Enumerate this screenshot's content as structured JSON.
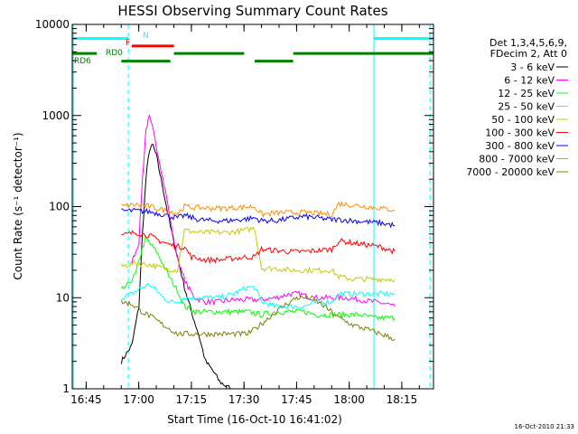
{
  "chart_data": {
    "type": "line",
    "title": "HESSI Observing Summary Count Rates",
    "xlabel": "Start Time (16-Oct-10 16:41:02)",
    "ylabel": "Count Rate (s⁻¹ detector⁻¹)",
    "xaxis_unit": "minutes after 16:41:02",
    "xlim": [
      0,
      103
    ],
    "ylim": [
      1,
      10000
    ],
    "yscale": "log",
    "grid": false,
    "legend_position": "right",
    "x_tick_labels": [
      "16:45",
      "17:00",
      "17:15",
      "17:30",
      "17:45",
      "18:00",
      "18:15"
    ],
    "y_tick_labels": [
      "1",
      "10",
      "100",
      "1000",
      "10000"
    ],
    "legend_header": [
      "Det 1,3,4,5,6,9,",
      "FDecim 2, Att 0"
    ],
    "timestamp": "16-Oct-2010 21:33",
    "series": [
      {
        "name": "3 - 6 keV",
        "color": "#000000",
        "points": [
          [
            14,
            2
          ],
          [
            17,
            3
          ],
          [
            19,
            8
          ],
          [
            20,
            50
          ],
          [
            21,
            200
          ],
          [
            22,
            420
          ],
          [
            23,
            470
          ],
          [
            24,
            360
          ],
          [
            25,
            230
          ],
          [
            26,
            150
          ],
          [
            28,
            60
          ],
          [
            30,
            28
          ],
          [
            32,
            13
          ],
          [
            34,
            7
          ],
          [
            36,
            4
          ],
          [
            38,
            2
          ],
          [
            40,
            1.6
          ],
          [
            42,
            1.2
          ],
          [
            45,
            1.0
          ]
        ]
      },
      {
        "name": "6 - 12 keV",
        "color": "#ff00ff",
        "points": [
          [
            17,
            25
          ],
          [
            19,
            40
          ],
          [
            20,
            200
          ],
          [
            21,
            700
          ],
          [
            22,
            950
          ],
          [
            23,
            700
          ],
          [
            25,
            300
          ],
          [
            27,
            120
          ],
          [
            29,
            40
          ],
          [
            31,
            20
          ],
          [
            33,
            13
          ],
          [
            35,
            10
          ],
          [
            38,
            9
          ],
          [
            42,
            9
          ],
          [
            46,
            9.5
          ],
          [
            50,
            9.5
          ],
          [
            54,
            9.5
          ],
          [
            58,
            10
          ],
          [
            62,
            11
          ],
          [
            65,
            11
          ],
          [
            68,
            10
          ],
          [
            72,
            10
          ],
          [
            75,
            10
          ],
          [
            78,
            10
          ],
          [
            82,
            9.5
          ],
          [
            86,
            9
          ],
          [
            90,
            8.5
          ],
          [
            92,
            8
          ]
        ]
      },
      {
        "name": "12 - 25 keV",
        "color": "#00ff00",
        "points": [
          [
            14,
            12
          ],
          [
            16,
            14
          ],
          [
            18,
            18
          ],
          [
            19,
            25
          ],
          [
            20,
            35
          ],
          [
            21,
            45
          ],
          [
            22,
            40
          ],
          [
            24,
            32
          ],
          [
            26,
            23
          ],
          [
            28,
            16
          ],
          [
            30,
            12
          ],
          [
            32,
            8
          ],
          [
            35,
            7
          ],
          [
            40,
            7
          ],
          [
            45,
            7
          ],
          [
            50,
            7
          ],
          [
            54,
            6.5
          ],
          [
            58,
            7
          ],
          [
            62,
            7
          ],
          [
            66,
            7
          ],
          [
            70,
            6.5
          ],
          [
            74,
            6.5
          ],
          [
            78,
            6.5
          ],
          [
            82,
            6.5
          ],
          [
            86,
            6
          ],
          [
            90,
            6
          ],
          [
            92,
            6
          ]
        ]
      },
      {
        "name": "25 - 50 keV",
        "color": "#00ffff",
        "points": [
          [
            14,
            10
          ],
          [
            17,
            11
          ],
          [
            20,
            13
          ],
          [
            22,
            14
          ],
          [
            24,
            12
          ],
          [
            26,
            10
          ],
          [
            28,
            9
          ],
          [
            30,
            9
          ],
          [
            32,
            10
          ],
          [
            34,
            10
          ],
          [
            38,
            10
          ],
          [
            42,
            10
          ],
          [
            46,
            11
          ],
          [
            50,
            13
          ],
          [
            52,
            13
          ],
          [
            54,
            9
          ],
          [
            58,
            8
          ],
          [
            62,
            8
          ],
          [
            66,
            8
          ],
          [
            70,
            9
          ],
          [
            74,
            9
          ],
          [
            76,
            11
          ],
          [
            80,
            11
          ],
          [
            84,
            11
          ],
          [
            88,
            11
          ],
          [
            92,
            11
          ]
        ]
      },
      {
        "name": "50 - 100 keV",
        "color": "#c8c800",
        "points": [
          [
            14,
            22
          ],
          [
            18,
            24
          ],
          [
            22,
            23
          ],
          [
            26,
            21
          ],
          [
            30,
            20
          ],
          [
            32,
            55
          ],
          [
            36,
            52
          ],
          [
            40,
            52
          ],
          [
            44,
            52
          ],
          [
            48,
            54
          ],
          [
            52,
            58
          ],
          [
            54,
            21
          ],
          [
            58,
            21
          ],
          [
            62,
            20
          ],
          [
            66,
            20
          ],
          [
            70,
            20
          ],
          [
            74,
            20
          ],
          [
            76,
            17
          ],
          [
            80,
            16
          ],
          [
            84,
            16
          ],
          [
            88,
            16
          ],
          [
            92,
            16
          ]
        ]
      },
      {
        "name": "100 - 300 keV",
        "color": "#ff0000",
        "points": [
          [
            14,
            48
          ],
          [
            18,
            52
          ],
          [
            22,
            48
          ],
          [
            25,
            42
          ],
          [
            28,
            38
          ],
          [
            31,
            36
          ],
          [
            32,
            36
          ],
          [
            34,
            28
          ],
          [
            38,
            26
          ],
          [
            42,
            26
          ],
          [
            46,
            27
          ],
          [
            50,
            28
          ],
          [
            52,
            28
          ],
          [
            54,
            34
          ],
          [
            58,
            33
          ],
          [
            62,
            32
          ],
          [
            66,
            32
          ],
          [
            70,
            33
          ],
          [
            74,
            34
          ],
          [
            76,
            42
          ],
          [
            80,
            40
          ],
          [
            84,
            38
          ],
          [
            88,
            36
          ],
          [
            92,
            32
          ]
        ]
      },
      {
        "name": "300 - 800 keV",
        "color": "#0000ff",
        "points": [
          [
            14,
            90
          ],
          [
            18,
            90
          ],
          [
            22,
            88
          ],
          [
            26,
            82
          ],
          [
            30,
            75
          ],
          [
            32,
            80
          ],
          [
            36,
            72
          ],
          [
            40,
            70
          ],
          [
            44,
            70
          ],
          [
            48,
            72
          ],
          [
            52,
            75
          ],
          [
            54,
            70
          ],
          [
            58,
            70
          ],
          [
            62,
            74
          ],
          [
            66,
            78
          ],
          [
            70,
            75
          ],
          [
            74,
            72
          ],
          [
            76,
            72
          ],
          [
            80,
            70
          ],
          [
            84,
            68
          ],
          [
            88,
            66
          ],
          [
            92,
            62
          ]
        ]
      },
      {
        "name": "800 - 7000 keV",
        "color": "#ff8c00",
        "points": [
          [
            14,
            100
          ],
          [
            18,
            105
          ],
          [
            22,
            100
          ],
          [
            26,
            92
          ],
          [
            30,
            84
          ],
          [
            32,
            100
          ],
          [
            36,
            97
          ],
          [
            40,
            96
          ],
          [
            44,
            96
          ],
          [
            48,
            98
          ],
          [
            52,
            100
          ],
          [
            54,
            82
          ],
          [
            58,
            85
          ],
          [
            62,
            86
          ],
          [
            66,
            86
          ],
          [
            70,
            84
          ],
          [
            74,
            82
          ],
          [
            76,
            108
          ],
          [
            80,
            104
          ],
          [
            84,
            100
          ],
          [
            88,
            96
          ],
          [
            92,
            92
          ]
        ]
      },
      {
        "name": "7000 - 20000 keV",
        "color": "#808000",
        "points": [
          [
            14,
            9
          ],
          [
            17,
            8.5
          ],
          [
            20,
            7
          ],
          [
            23,
            6
          ],
          [
            26,
            5
          ],
          [
            28,
            4.5
          ],
          [
            30,
            4
          ],
          [
            32,
            4
          ],
          [
            34,
            4
          ],
          [
            38,
            4
          ],
          [
            42,
            4
          ],
          [
            46,
            4
          ],
          [
            50,
            4
          ],
          [
            52,
            4.5
          ],
          [
            56,
            6
          ],
          [
            60,
            8
          ],
          [
            64,
            10
          ],
          [
            68,
            10
          ],
          [
            72,
            8
          ],
          [
            76,
            6
          ],
          [
            80,
            5
          ],
          [
            84,
            4.5
          ],
          [
            88,
            4
          ],
          [
            92,
            3.5
          ]
        ]
      }
    ],
    "flags": [
      {
        "name": "N",
        "color": "#00ffff",
        "level": 7000,
        "segments": [
          [
            0,
            16
          ],
          [
            86,
            103
          ]
        ]
      },
      {
        "name": "F",
        "color": "#ff0000",
        "level": 5800,
        "segments": [
          [
            17,
            29
          ]
        ]
      },
      {
        "name": "RD0",
        "color": "#008000",
        "level": 4800,
        "segments": [
          [
            0,
            7
          ],
          [
            29,
            49
          ],
          [
            63,
            103
          ]
        ]
      },
      {
        "name": "RD6",
        "color": "#008000",
        "level": 3950,
        "segments": [
          [
            14,
            28
          ],
          [
            52,
            63
          ]
        ]
      }
    ],
    "vertical_markers": [
      {
        "color": "#00ffff",
        "style": "solid",
        "x": 0.3
      },
      {
        "color": "#00ffff",
        "style": "dashed",
        "x": 16
      },
      {
        "color": "#00ffff",
        "style": "solid",
        "x": 86
      },
      {
        "color": "#00ffff",
        "style": "dashed",
        "x": 102
      }
    ]
  }
}
